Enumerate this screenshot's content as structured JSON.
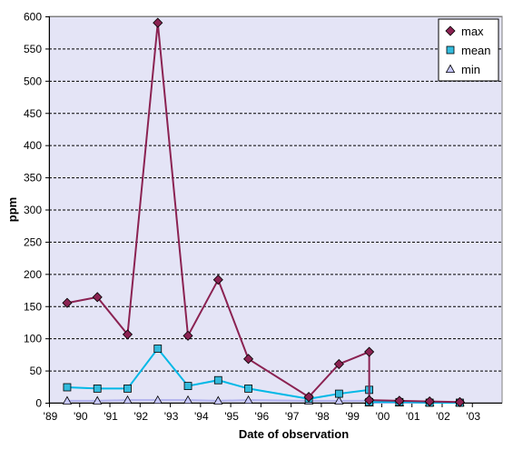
{
  "chart_data": {
    "type": "line",
    "title": "",
    "xlabel": "Date of observation",
    "ylabel": "ppm",
    "ylim": [
      0,
      600
    ],
    "y_ticks": [
      0,
      50,
      100,
      150,
      200,
      250,
      300,
      350,
      400,
      450,
      500,
      550,
      600
    ],
    "xlim": [
      1989,
      2004
    ],
    "x_ticks": [
      {
        "value": 1989,
        "label": "'89"
      },
      {
        "value": 1990,
        "label": "'90"
      },
      {
        "value": 1991,
        "label": "'91"
      },
      {
        "value": 1992,
        "label": "'92"
      },
      {
        "value": 1993,
        "label": "'93"
      },
      {
        "value": 1994,
        "label": "'94"
      },
      {
        "value": 1995,
        "label": "'95"
      },
      {
        "value": 1996,
        "label": "'96"
      },
      {
        "value": 1997,
        "label": "'97"
      },
      {
        "value": 1998,
        "label": "'98"
      },
      {
        "value": 1999,
        "label": "'99"
      },
      {
        "value": 2000,
        "label": "'00"
      },
      {
        "value": 2001,
        "label": "'01"
      },
      {
        "value": 2002,
        "label": "'02"
      },
      {
        "value": 2003,
        "label": "'03"
      }
    ],
    "grid": "horizontal dashed",
    "legend_position": "top-right",
    "plot_background": "#e4e4f6",
    "series": [
      {
        "name": "max",
        "marker": "diamond",
        "color": "#8b2252",
        "marker_color": "#8b2252",
        "points": [
          [
            1989.6,
            155
          ],
          [
            1990.6,
            164
          ],
          [
            1991.6,
            106
          ],
          [
            1992.6,
            590
          ],
          [
            1993.6,
            104
          ],
          [
            1994.6,
            191
          ],
          [
            1995.6,
            68
          ],
          [
            1997.6,
            9
          ],
          [
            1998.6,
            60
          ],
          [
            1999.6,
            79
          ],
          [
            1999.6,
            4
          ],
          [
            2000.6,
            3
          ],
          [
            2001.6,
            2
          ],
          [
            2002.6,
            1
          ]
        ]
      },
      {
        "name": "mean",
        "marker": "square",
        "color": "#00b8e6",
        "marker_color": "#33bbdd",
        "points": [
          [
            1989.6,
            24
          ],
          [
            1990.6,
            22
          ],
          [
            1991.6,
            22
          ],
          [
            1992.6,
            84
          ],
          [
            1993.6,
            26
          ],
          [
            1994.6,
            35
          ],
          [
            1995.6,
            22
          ],
          [
            1997.6,
            6
          ],
          [
            1998.6,
            14
          ],
          [
            1999.6,
            20
          ],
          [
            1999.6,
            1
          ],
          [
            2000.6,
            1
          ],
          [
            2001.6,
            0
          ],
          [
            2002.6,
            0
          ]
        ]
      },
      {
        "name": "min",
        "marker": "triangle",
        "color": "#b0b0ee",
        "marker_color": "#c8c8ff",
        "points": [
          [
            1989.6,
            3
          ],
          [
            1990.6,
            3
          ],
          [
            1991.6,
            4
          ],
          [
            1992.6,
            4
          ],
          [
            1993.6,
            4
          ],
          [
            1994.6,
            3
          ],
          [
            1995.6,
            4
          ],
          [
            1997.6,
            3
          ],
          [
            1998.6,
            3
          ],
          [
            1999.6,
            3
          ],
          [
            1999.6,
            0
          ],
          [
            2000.6,
            0
          ],
          [
            2001.6,
            0
          ],
          [
            2002.6,
            0
          ]
        ]
      }
    ]
  }
}
